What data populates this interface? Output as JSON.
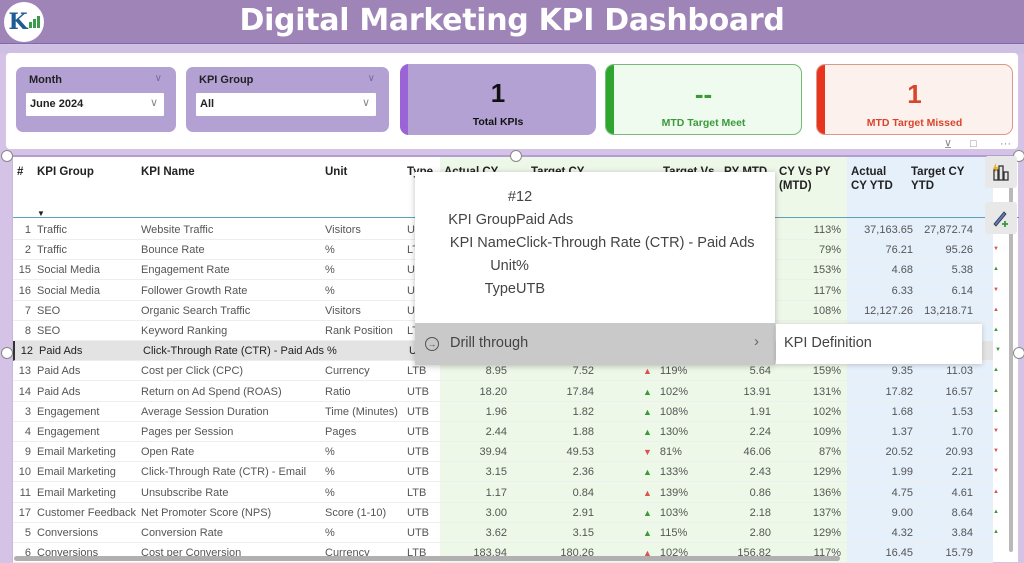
{
  "header": {
    "title": "Digital Marketing KPI Dashboard",
    "logo_text": "K"
  },
  "slicers": {
    "month": {
      "label": "Month",
      "value": "June 2024"
    },
    "kpi_group": {
      "label": "KPI Group",
      "value": "All"
    }
  },
  "cards": {
    "total": {
      "value": "1",
      "caption": "Total KPIs",
      "color": "#b3a1d4",
      "accent": "#9a63d6"
    },
    "meet": {
      "value": "--",
      "caption": "MTD Target Meet",
      "color": "#3a9a3a",
      "accent": "#2ea52e"
    },
    "missed": {
      "value": "1",
      "caption": "MTD Target Missed",
      "color": "#d9452b",
      "accent": "#e8341d"
    }
  },
  "table": {
    "columns": [
      "#",
      "KPI Group",
      "KPI Name",
      "Unit",
      "Type",
      "Actual CY",
      "Target CY",
      "Target Vs",
      "PY MTD",
      "CY Vs PY (MTD)",
      "Actual CY YTD",
      "Target CY YTD"
    ],
    "col_labels": {
      "num": "#",
      "group": "KPI Group",
      "name": "KPI Name",
      "unit": "Unit",
      "type": "Type",
      "actual": "Actual CY",
      "target": "Target CY",
      "tvs": "Target Vs",
      "py": "PY MTD",
      "cyvspy1": "CY Vs PY",
      "cyvspy2": "(MTD)",
      "ytd1": "Actual",
      "ytd2": "CY YTD",
      "tytd1": "Target CY",
      "tytd2": "YTD"
    },
    "rows": [
      {
        "num": "1",
        "group": "Traffic",
        "name": "Website Traffic",
        "unit": "Visitors",
        "type": "UTB",
        "actual": "",
        "target": "",
        "tvs": "",
        "py": "",
        "cyvspy": "113%",
        "ytd": "37,163.65",
        "tytd": "27,872.74",
        "edge": "down-g"
      },
      {
        "num": "2",
        "group": "Traffic",
        "name": "Bounce Rate",
        "unit": "%",
        "type": "LTB",
        "actual": "",
        "target": "",
        "tvs": "",
        "py": "",
        "cyvspy": "79%",
        "ytd": "76.21",
        "tytd": "95.26",
        "edge": "down-r"
      },
      {
        "num": "15",
        "group": "Social Media",
        "name": "Engagement Rate",
        "unit": "%",
        "type": "UTB",
        "actual": "",
        "target": "",
        "tvs": "",
        "py": "",
        "cyvspy": "153%",
        "ytd": "4.68",
        "tytd": "5.38",
        "edge": "up-g"
      },
      {
        "num": "16",
        "group": "Social Media",
        "name": "Follower Growth Rate",
        "unit": "%",
        "type": "UTB",
        "actual": "",
        "target": "",
        "tvs": "",
        "py": "",
        "cyvspy": "117%",
        "ytd": "6.33",
        "tytd": "6.14",
        "edge": "down-r"
      },
      {
        "num": "7",
        "group": "SEO",
        "name": "Organic Search Traffic",
        "unit": "Visitors",
        "type": "UTB",
        "actual": "",
        "target": "",
        "tvs": "",
        "py": "",
        "cyvspy": "108%",
        "ytd": "12,127.26",
        "tytd": "13,218.71",
        "edge": "up-r"
      },
      {
        "num": "8",
        "group": "SEO",
        "name": "Keyword Ranking",
        "unit": "Rank Position",
        "type": "LTB",
        "actual": "",
        "target": "",
        "tvs": "",
        "py": "",
        "cyvspy": "",
        "ytd": "",
        "tytd": "",
        "edge": "up-g"
      },
      {
        "num": "12",
        "group": "Paid Ads",
        "name": "Click-Through Rate (CTR) - Paid Ads",
        "unit": "%",
        "type": "UTB",
        "actual": "",
        "target": "",
        "tvs": "",
        "py": "",
        "cyvspy": "",
        "ytd": "",
        "tytd": "",
        "edge": "down-g",
        "selected": true
      },
      {
        "num": "13",
        "group": "Paid Ads",
        "name": "Cost per Click (CPC)",
        "unit": "Currency",
        "type": "LTB",
        "actual": "8.95",
        "target": "7.52",
        "tvs": "119%",
        "tvs_dir": "up-r",
        "py": "5.64",
        "cyvspy": "159%",
        "ytd": "9.35",
        "tytd": "11.03",
        "edge": "up-g"
      },
      {
        "num": "14",
        "group": "Paid Ads",
        "name": "Return on Ad Spend (ROAS)",
        "unit": "Ratio",
        "type": "UTB",
        "actual": "18.20",
        "target": "17.84",
        "tvs": "102%",
        "tvs_dir": "up-g",
        "py": "13.91",
        "cyvspy": "131%",
        "ytd": "17.82",
        "tytd": "16.57",
        "edge": "up-g"
      },
      {
        "num": "3",
        "group": "Engagement",
        "name": "Average Session Duration",
        "unit": "Time (Minutes)",
        "type": "UTB",
        "actual": "1.96",
        "target": "1.82",
        "tvs": "108%",
        "tvs_dir": "up-g",
        "py": "1.91",
        "cyvspy": "102%",
        "ytd": "1.68",
        "tytd": "1.53",
        "edge": "up-g"
      },
      {
        "num": "4",
        "group": "Engagement",
        "name": "Pages per Session",
        "unit": "Pages",
        "type": "UTB",
        "actual": "2.44",
        "target": "1.88",
        "tvs": "130%",
        "tvs_dir": "up-g",
        "py": "2.24",
        "cyvspy": "109%",
        "ytd": "1.37",
        "tytd": "1.70",
        "edge": "down-r"
      },
      {
        "num": "9",
        "group": "Email Marketing",
        "name": "Open Rate",
        "unit": "%",
        "type": "UTB",
        "actual": "39.94",
        "target": "49.53",
        "tvs": "81%",
        "tvs_dir": "down-r",
        "py": "46.06",
        "cyvspy": "87%",
        "ytd": "20.52",
        "tytd": "20.93",
        "edge": "down-r"
      },
      {
        "num": "10",
        "group": "Email Marketing",
        "name": "Click-Through Rate (CTR) - Email",
        "unit": "%",
        "type": "UTB",
        "actual": "3.15",
        "target": "2.36",
        "tvs": "133%",
        "tvs_dir": "up-g",
        "py": "2.43",
        "cyvspy": "129%",
        "ytd": "1.99",
        "tytd": "2.21",
        "edge": "down-r"
      },
      {
        "num": "11",
        "group": "Email Marketing",
        "name": "Unsubscribe Rate",
        "unit": "%",
        "type": "LTB",
        "actual": "1.17",
        "target": "0.84",
        "tvs": "139%",
        "tvs_dir": "up-r",
        "py": "0.86",
        "cyvspy": "136%",
        "ytd": "4.75",
        "tytd": "4.61",
        "edge": "up-r"
      },
      {
        "num": "17",
        "group": "Customer Feedback",
        "name": "Net Promoter Score (NPS)",
        "unit": "Score (1-10)",
        "type": "UTB",
        "actual": "3.00",
        "target": "2.91",
        "tvs": "103%",
        "tvs_dir": "up-g",
        "py": "2.18",
        "cyvspy": "137%",
        "ytd": "9.00",
        "tytd": "8.64",
        "edge": "up-g"
      },
      {
        "num": "5",
        "group": "Conversions",
        "name": "Conversion Rate",
        "unit": "%",
        "type": "UTB",
        "actual": "3.62",
        "target": "3.15",
        "tvs": "115%",
        "tvs_dir": "up-g",
        "py": "2.80",
        "cyvspy": "129%",
        "ytd": "4.32",
        "tytd": "3.84",
        "edge": "up-g"
      },
      {
        "num": "6",
        "group": "Conversions",
        "name": "Cost per Conversion",
        "unit": "Currency",
        "type": "LTB",
        "actual": "183.94",
        "target": "180.26",
        "tvs": "102%",
        "tvs_dir": "up-r",
        "py": "156.82",
        "cyvspy": "117%",
        "ytd": "16.45",
        "tytd": "15.79",
        "edge": ""
      }
    ]
  },
  "tooltip": {
    "fields": [
      {
        "k": "#",
        "v": "12"
      },
      {
        "k": "KPI Group",
        "v": "Paid Ads"
      },
      {
        "k": "KPI Name",
        "v": "Click-Through Rate (CTR) - Paid Ads"
      },
      {
        "k": "Unit",
        "v": "%"
      },
      {
        "k": "Type",
        "v": "UTB"
      }
    ],
    "drill_label": "Drill through",
    "submenu_item": "KPI Definition"
  },
  "side_buttons": {
    "build": "build-visual-icon",
    "format": "format-visual-icon"
  }
}
